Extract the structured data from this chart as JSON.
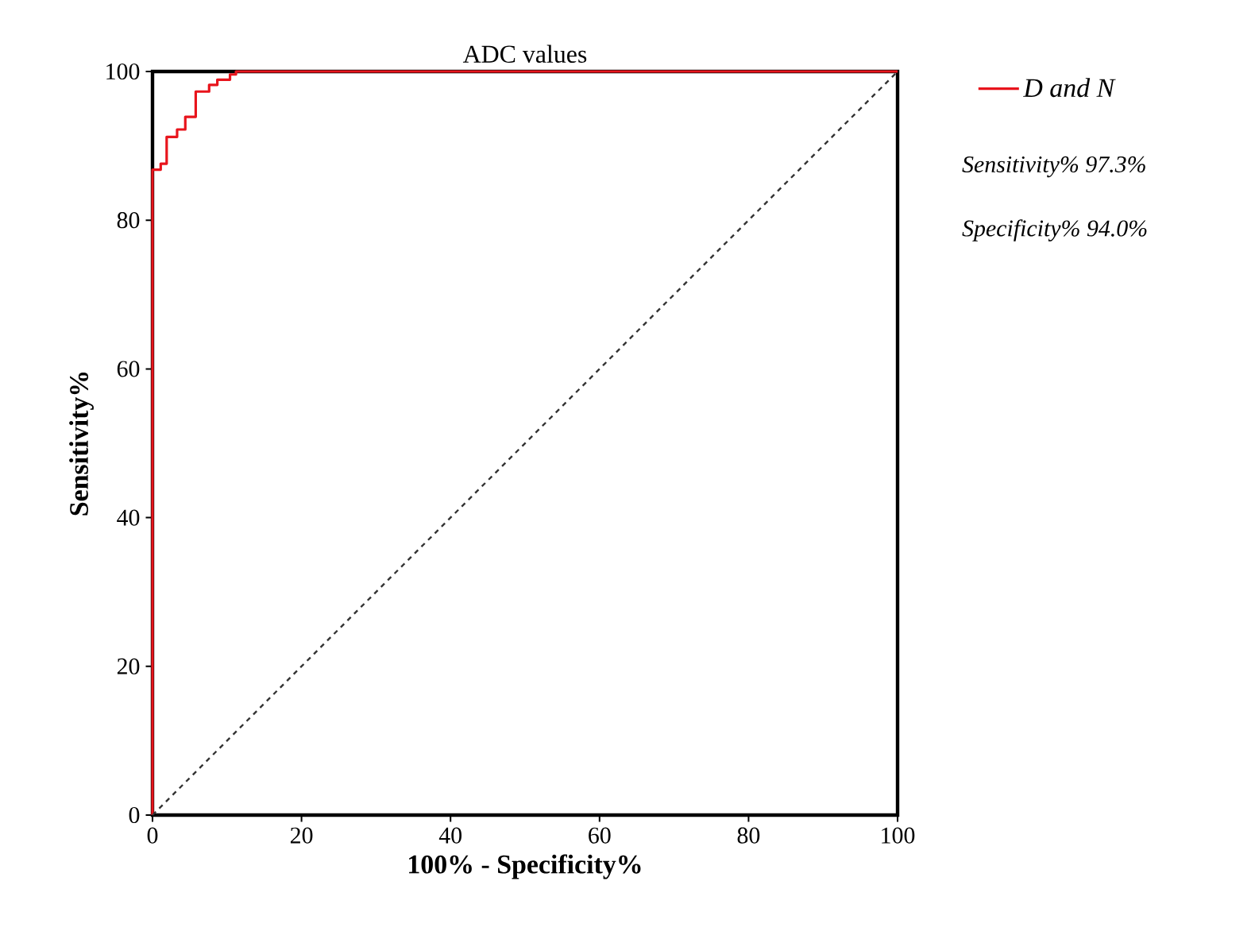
{
  "chart_data": {
    "type": "line",
    "title": "ADC values",
    "xlabel": "100% - Specificity%",
    "ylabel": "Sensitivity%",
    "xlim": [
      0,
      100
    ],
    "ylim": [
      0,
      100
    ],
    "xticks": [
      0,
      20,
      40,
      60,
      80,
      100
    ],
    "yticks": [
      0,
      20,
      40,
      60,
      80,
      100
    ],
    "grid": false,
    "legend": "top right",
    "series": [
      {
        "name": "D and N",
        "color": "#e8141c",
        "line_style": "solid",
        "x": [
          0,
          0,
          1.1,
          1.1,
          1.9,
          1.9,
          3.3,
          3.3,
          4.4,
          4.4,
          5.8,
          5.8,
          7.6,
          7.6,
          8.7,
          8.7,
          10.4,
          10.4,
          11.2,
          11.2,
          100
        ],
        "values": [
          0,
          86.8,
          86.8,
          87.6,
          87.6,
          91.2,
          91.2,
          92.2,
          92.2,
          93.9,
          93.9,
          97.3,
          97.3,
          98.2,
          98.2,
          98.9,
          98.9,
          99.6,
          99.6,
          100,
          100
        ]
      },
      {
        "color": "#333333",
        "line_style": "dashed",
        "x": [
          0,
          100
        ],
        "values": [
          0,
          100
        ]
      }
    ],
    "annotations": [
      "Sensitivity%   97.3%",
      "Specificity%   94.0%"
    ]
  }
}
